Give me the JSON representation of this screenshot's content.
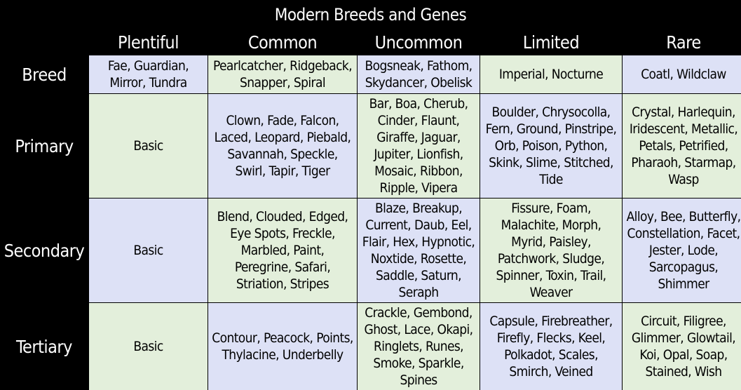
{
  "title": "Modern Breeds and Genes",
  "columns": [
    "Plentiful",
    "Common",
    "Uncommon",
    "Limited",
    "Rare"
  ],
  "rows": [
    {
      "label": "Breed",
      "cells": [
        "Fae, Guardian, Mirror, Tundra",
        "Pearlcatcher, Ridgeback, Snapper, Spiral",
        "Bogsneak, Fathom, Skydancer, Obelisk",
        "Imperial, Nocturne",
        "Coatl, Wildclaw"
      ]
    },
    {
      "label": "Primary",
      "cells": [
        "Basic",
        "Clown, Fade, Falcon, Laced, Leopard, Piebald, Savannah, Speckle, Swirl, Tapir, Tiger",
        "Bar, Boa, Cherub, Cinder, Flaunt, Giraffe, Jaguar, Jupiter, Lionfish, Mosaic, Ribbon, Ripple, Vipera",
        "Boulder, Chrysocolla, Fern, Ground, Pinstripe, Orb, Poison, Python, Skink, Slime, Stitched, Tide",
        "Crystal, Harlequin, Iridescent, Metallic, Petals, Petrified, Pharaoh, Starmap, Wasp"
      ]
    },
    {
      "label": "Secondary",
      "cells": [
        "Basic",
        "Blend, Clouded, Edged, Eye Spots, Freckle, Marbled, Paint, Peregrine, Safari, Striation, Stripes",
        "Blaze, Breakup, Current, Daub, Eel, Flair, Hex, Hypnotic, Noxtide, Rosette, Saddle, Saturn, Seraph",
        "Fissure, Foam, Malachite, Morph, Myrid, Paisley, Patchwork, Sludge, Spinner, Toxin, Trail, Weaver",
        "Alloy, Bee, Butterfly, Constellation, Facet, Jester,  Lode, Sarcopagus, Shimmer"
      ]
    },
    {
      "label": "Tertiary",
      "cells": [
        "Basic",
        "Contour, Peacock, Points, Thylacine, Underbelly",
        "Crackle, Gembond, Ghost, Lace, Okapi, Ringlets, Runes, Smoke, Sparkle, Spines",
        "Capsule, Firebreather, Firefly, Flecks, Keel, Polkadot, Scales, Smirch, Veined",
        "Circuit, Filigree, Glimmer, Glowtail, Koi, Opal, Soap, Stained, Wish"
      ]
    }
  ],
  "colors": {
    "background": "#000000",
    "header_text": "#ffffff",
    "blue_cell": "#dde1f6",
    "green_cell": "#e3efdb"
  }
}
